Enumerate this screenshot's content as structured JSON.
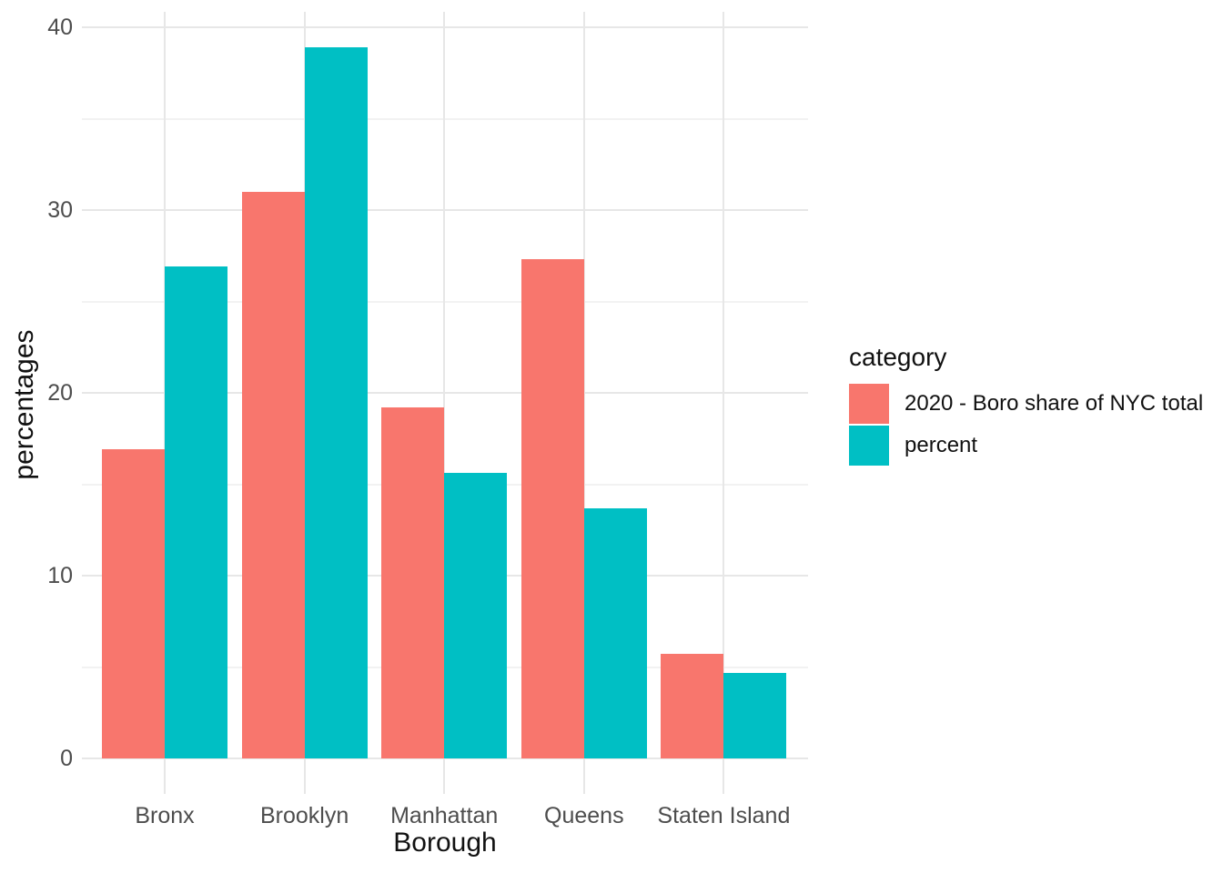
{
  "chart_data": {
    "type": "bar",
    "title": "",
    "categories": [
      "Bronx",
      "Brooklyn",
      "Manhattan",
      "Queens",
      "Staten Island"
    ],
    "series": [
      {
        "name": "2020 - Boro share of NYC total",
        "color": "#F8766D",
        "values": [
          16.9,
          31.0,
          19.2,
          27.3,
          5.7
        ]
      },
      {
        "name": "percent",
        "color": "#00BFC4",
        "values": [
          26.9,
          38.9,
          15.6,
          13.7,
          4.7
        ]
      }
    ],
    "xlabel": "Borough",
    "ylabel": "percentages",
    "legend_title": "category",
    "legend_position": "right",
    "yticks": [
      0,
      10,
      20,
      30,
      40
    ],
    "ylim": [
      0,
      40.9
    ],
    "grid": "major and minor horizontal, major vertical at category centers"
  },
  "colors": {
    "series_share": "#F8766D",
    "series_percent": "#00BFC4",
    "grid_major": "#E7E7E7",
    "grid_minor": "#F2F2F2",
    "axis_text": "#4D4D4D",
    "title_text": "#111111",
    "background": "#FFFFFF"
  }
}
